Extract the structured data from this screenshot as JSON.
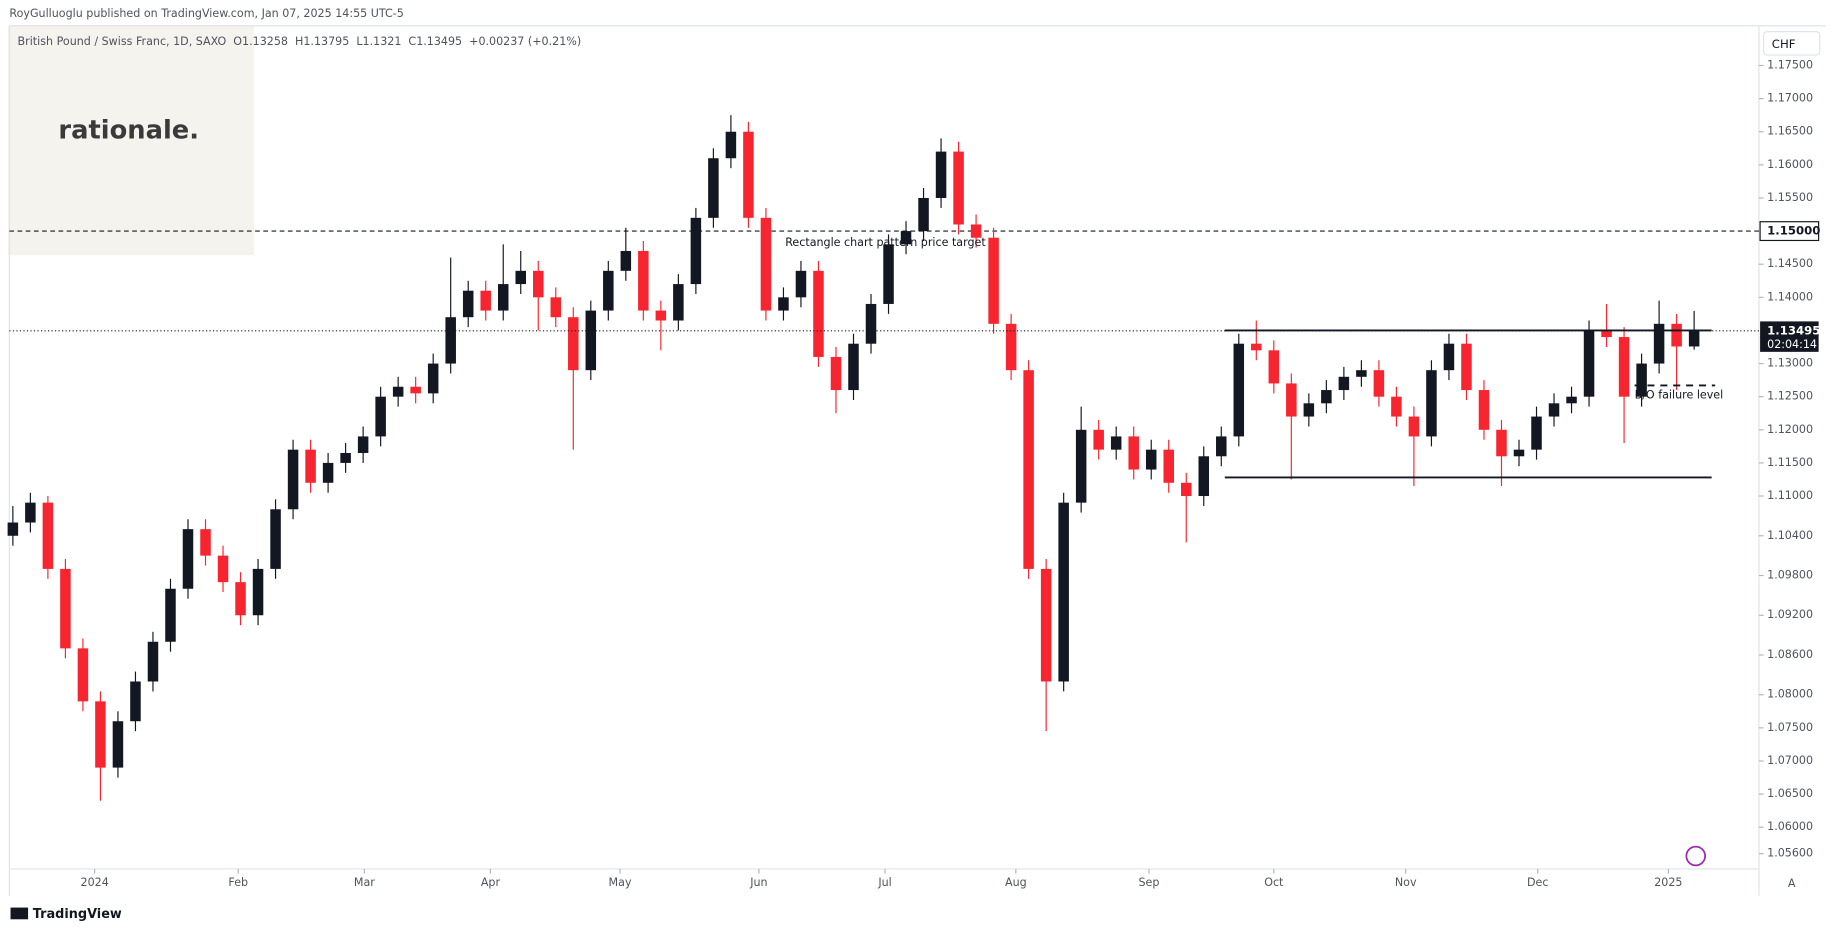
{
  "header": {
    "publisher": "RoyGulluoglu published on TradingView.com, Jan 07, 2025 14:55 UTC-5",
    "logo": "rationale.",
    "footer": "TradingView",
    "currency": "CHF",
    "auto": "A"
  },
  "chart_data": {
    "type": "candlestick",
    "legend": {
      "symbol": "British Pound / Swiss Franc, 1D, SAXO",
      "O": "O",
      "H": "H",
      "L": "L",
      "C": "C",
      "change": "+0.00237 (+0.21%)"
    },
    "up_color": "#131722",
    "down_color": "#f7252f",
    "categories": [
      null,
      null,
      null,
      null,
      null,
      null,
      null,
      null,
      null,
      null,
      null,
      null,
      null,
      null,
      null,
      null,
      null,
      null,
      null,
      null,
      null,
      null,
      null,
      null,
      null,
      null,
      null,
      null,
      null,
      null,
      null,
      null,
      null,
      null,
      null,
      null,
      null,
      null,
      null,
      null,
      null,
      null,
      null,
      null,
      null,
      null,
      null,
      null,
      null,
      null,
      null,
      null,
      null,
      null,
      null,
      null,
      null,
      null,
      null,
      null,
      null,
      null,
      null,
      null,
      null,
      null,
      null,
      null,
      null,
      null,
      null,
      null,
      null,
      null,
      null,
      null,
      null,
      null,
      null,
      null,
      null,
      null,
      null,
      null,
      null,
      null,
      null,
      null,
      null,
      null,
      null,
      null,
      null,
      null,
      null,
      null,
      null
    ],
    "open": [
      1.104,
      1.106,
      1.109,
      1.099,
      1.087,
      1.079,
      1.069,
      1.076,
      1.082,
      1.088,
      1.096,
      1.105,
      1.101,
      1.097,
      1.092,
      1.099,
      1.108,
      1.117,
      1.112,
      1.115,
      1.1165,
      1.119,
      1.125,
      1.1265,
      1.1255,
      1.13,
      1.137,
      1.141,
      1.138,
      1.142,
      1.144,
      1.14,
      1.137,
      1.129,
      1.138,
      1.144,
      1.147,
      1.138,
      1.1365,
      1.142,
      1.152,
      1.161,
      1.165,
      1.152,
      1.138,
      1.14,
      1.144,
      1.131,
      1.126,
      1.133,
      1.139,
      1.148,
      1.15,
      1.155,
      1.162,
      1.151,
      1.149,
      1.136,
      1.129,
      1.099,
      1.082,
      1.109,
      1.12,
      1.117,
      1.119,
      1.114,
      1.117,
      1.112,
      1.11,
      1.116,
      1.119,
      1.133,
      1.132,
      1.127,
      1.122,
      1.124,
      1.126,
      1.128,
      1.129,
      1.125,
      1.122,
      1.119,
      1.129,
      1.133,
      1.126,
      1.12,
      1.116,
      1.117,
      1.122,
      1.124,
      1.125,
      1.135,
      1.134,
      1.125,
      1.13,
      1.136,
      1.13258
    ],
    "high": [
      1.1085,
      1.1105,
      1.11,
      1.1005,
      1.0885,
      1.0805,
      1.0775,
      1.0835,
      1.0895,
      1.0975,
      1.1065,
      1.1065,
      1.1025,
      1.0985,
      1.1005,
      1.1095,
      1.1185,
      1.1185,
      1.1165,
      1.118,
      1.1205,
      1.1265,
      1.128,
      1.128,
      1.1315,
      1.146,
      1.1425,
      1.1425,
      1.148,
      1.147,
      1.1455,
      1.1415,
      1.1385,
      1.1395,
      1.1455,
      1.1505,
      1.1485,
      1.1395,
      1.1435,
      1.1535,
      1.1625,
      1.1675,
      1.1665,
      1.1535,
      1.1415,
      1.1455,
      1.1455,
      1.1325,
      1.1345,
      1.1405,
      1.1495,
      1.1515,
      1.1565,
      1.164,
      1.1635,
      1.1525,
      1.1505,
      1.1375,
      1.1305,
      1.1005,
      1.1105,
      1.1235,
      1.1215,
      1.1205,
      1.1205,
      1.1185,
      1.1185,
      1.1135,
      1.1175,
      1.1205,
      1.1345,
      1.1365,
      1.1335,
      1.1285,
      1.1255,
      1.1275,
      1.1295,
      1.1305,
      1.1305,
      1.1265,
      1.1235,
      1.1305,
      1.1345,
      1.1345,
      1.1275,
      1.1215,
      1.1185,
      1.1235,
      1.1255,
      1.1265,
      1.1365,
      1.139,
      1.1355,
      1.1315,
      1.1395,
      1.1375,
      1.13795
    ],
    "low": [
      1.1025,
      1.1045,
      1.0975,
      1.0855,
      1.0775,
      1.064,
      1.0675,
      1.0745,
      1.0805,
      1.0865,
      1.0945,
      1.0995,
      1.0955,
      1.0905,
      1.0905,
      1.0975,
      1.1065,
      1.1105,
      1.1105,
      1.1135,
      1.115,
      1.1175,
      1.1235,
      1.124,
      1.124,
      1.1285,
      1.1355,
      1.1365,
      1.1365,
      1.1405,
      1.135,
      1.1355,
      1.117,
      1.1275,
      1.1365,
      1.1425,
      1.1365,
      1.132,
      1.135,
      1.1405,
      1.1505,
      1.1595,
      1.1505,
      1.1365,
      1.1365,
      1.1385,
      1.1295,
      1.1225,
      1.1245,
      1.1315,
      1.1375,
      1.1465,
      1.1485,
      1.1535,
      1.1495,
      1.1475,
      1.1345,
      1.1275,
      1.0975,
      1.0745,
      1.0805,
      1.1075,
      1.1155,
      1.1155,
      1.1125,
      1.1125,
      1.1105,
      1.103,
      1.1085,
      1.1145,
      1.1175,
      1.1305,
      1.1255,
      1.1125,
      1.1205,
      1.1225,
      1.1245,
      1.1265,
      1.1235,
      1.1205,
      1.1115,
      1.1175,
      1.1275,
      1.1245,
      1.1185,
      1.1115,
      1.1145,
      1.1155,
      1.1205,
      1.1225,
      1.1235,
      1.1325,
      1.118,
      1.1235,
      1.1285,
      1.126,
      1.1321
    ],
    "close": [
      1.106,
      1.109,
      1.099,
      1.087,
      1.079,
      1.069,
      1.076,
      1.082,
      1.088,
      1.096,
      1.105,
      1.101,
      1.097,
      1.092,
      1.099,
      1.108,
      1.117,
      1.112,
      1.115,
      1.1165,
      1.119,
      1.125,
      1.1265,
      1.1255,
      1.13,
      1.137,
      1.141,
      1.138,
      1.142,
      1.144,
      1.14,
      1.137,
      1.129,
      1.138,
      1.144,
      1.147,
      1.138,
      1.1365,
      1.142,
      1.152,
      1.161,
      1.165,
      1.152,
      1.138,
      1.14,
      1.144,
      1.131,
      1.126,
      1.133,
      1.139,
      1.148,
      1.15,
      1.155,
      1.162,
      1.151,
      1.149,
      1.136,
      1.129,
      1.099,
      1.082,
      1.109,
      1.12,
      1.117,
      1.119,
      1.114,
      1.117,
      1.112,
      1.11,
      1.116,
      1.119,
      1.133,
      1.132,
      1.127,
      1.122,
      1.124,
      1.126,
      1.128,
      1.129,
      1.125,
      1.122,
      1.119,
      1.129,
      1.133,
      1.126,
      1.12,
      1.116,
      1.117,
      1.122,
      1.124,
      1.125,
      1.135,
      1.134,
      1.125,
      1.13,
      1.136,
      1.13258,
      1.13495
    ],
    "countdown": "02:04:14",
    "xlim": [
      -0.2,
      99.7
    ],
    "xticks": [
      {
        "value": 4.67,
        "label": "2024"
      },
      {
        "value": 12.87,
        "label": "Feb"
      },
      {
        "value": 20.07,
        "label": "Mar"
      },
      {
        "value": 27.27,
        "label": "Apr"
      },
      {
        "value": 34.67,
        "label": "May"
      },
      {
        "value": 42.6,
        "label": "Jun"
      },
      {
        "value": 49.8,
        "label": "Jul"
      },
      {
        "value": 57.27,
        "label": "Aug"
      },
      {
        "value": 64.87,
        "label": "Sep"
      },
      {
        "value": 72,
        "label": "Oct"
      },
      {
        "value": 79.53,
        "label": "Nov"
      },
      {
        "value": 87.07,
        "label": "Dec"
      },
      {
        "value": 94.53,
        "label": "2025"
      }
    ],
    "ylim": [
      1.0537,
      1.181
    ],
    "yticks": [
      {
        "value": 1.175,
        "label": "1.17500"
      },
      {
        "value": 1.17,
        "label": "1.17000"
      },
      {
        "value": 1.165,
        "label": "1.16500"
      },
      {
        "value": 1.16,
        "label": "1.16000"
      },
      {
        "value": 1.155,
        "label": "1.15500"
      },
      {
        "value": 1.145,
        "label": "1.14500"
      },
      {
        "value": 1.14,
        "label": "1.14000"
      },
      {
        "value": 1.13,
        "label": "1.13000"
      },
      {
        "value": 1.125,
        "label": "1.12500"
      },
      {
        "value": 1.12,
        "label": "1.12000"
      },
      {
        "value": 1.115,
        "label": "1.11500"
      },
      {
        "value": 1.11,
        "label": "1.11000"
      },
      {
        "value": 1.104,
        "label": "1.10400"
      },
      {
        "value": 1.098,
        "label": "1.09800"
      },
      {
        "value": 1.092,
        "label": "1.09200"
      },
      {
        "value": 1.086,
        "label": "1.08600"
      },
      {
        "value": 1.08,
        "label": "1.08000"
      },
      {
        "value": 1.075,
        "label": "1.07500"
      },
      {
        "value": 1.07,
        "label": "1.07000"
      },
      {
        "value": 1.065,
        "label": "1.06500"
      },
      {
        "value": 1.06,
        "label": "1.06000"
      },
      {
        "value": 1.056,
        "label": "1.05600"
      }
    ],
    "levels": {
      "target": {
        "value": 1.15,
        "label": "1.15000",
        "from": -0.2,
        "to": 99.7
      },
      "range_top": {
        "value": 1.135,
        "from": 69.2,
        "to": 97
      },
      "range_bottom": {
        "value": 1.1128,
        "from": 69.2,
        "to": 97
      },
      "failure": {
        "value": 1.1267,
        "from": 92.6,
        "to": 97.2
      }
    },
    "annotations": [
      {
        "text": "Rectangle chart pattern price target",
        "x": 44.1,
        "y": 1.1482
      },
      {
        "text": "B/O failure level",
        "x": 92.6,
        "y": 1.1252
      }
    ]
  }
}
